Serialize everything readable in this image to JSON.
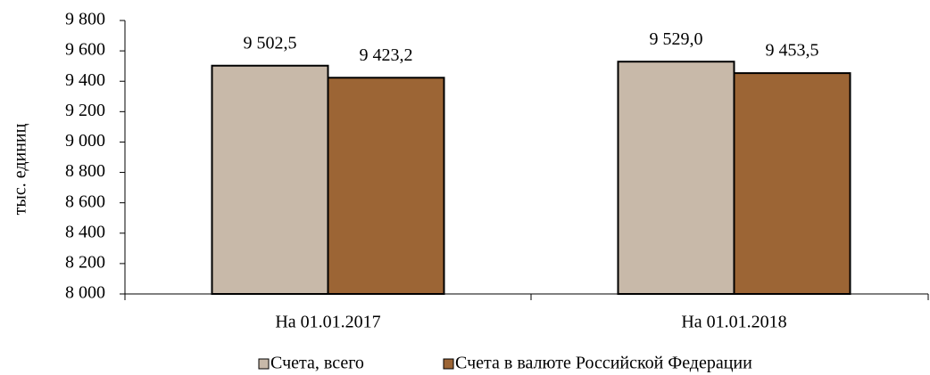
{
  "chart_data": {
    "type": "bar",
    "y_label": "тыс. единиц",
    "categories": [
      "На 01.01.2017",
      "На 01.01.2018"
    ],
    "series": [
      {
        "name": "Счета, всего",
        "color": "#c8b9a9",
        "values": [
          9502.5,
          9529.0
        ],
        "value_labels": [
          "9 502,5",
          "9 529,0"
        ]
      },
      {
        "name": "Счета в валюте Российской Федерации",
        "color": "#9c6535",
        "values": [
          9423.2,
          9453.5
        ],
        "value_labels": [
          "9 423,2",
          "9 453,5"
        ]
      }
    ],
    "ylim": [
      8000,
      9800
    ],
    "yticks": [
      {
        "value": 8000,
        "label": "8 000"
      },
      {
        "value": 8200,
        "label": "8 200"
      },
      {
        "value": 8400,
        "label": "8 400"
      },
      {
        "value": 8600,
        "label": "8 600"
      },
      {
        "value": 8800,
        "label": "8 800"
      },
      {
        "value": 9000,
        "label": "9 000"
      },
      {
        "value": 9200,
        "label": "9 200"
      },
      {
        "value": 9400,
        "label": "9 400"
      },
      {
        "value": 9600,
        "label": "9 600"
      },
      {
        "value": 9800,
        "label": "9 800"
      }
    ],
    "legend": "bottom"
  }
}
